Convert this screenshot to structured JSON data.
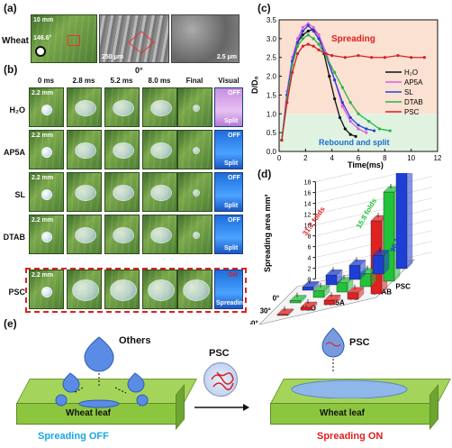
{
  "panels": {
    "a": "(a)",
    "b": "(b)",
    "c": "(c)",
    "d": "(d)",
    "e": "(e)"
  },
  "panel_a": {
    "wheat_label": "Wheat",
    "scale1": "10 mm",
    "angle": "146.6°",
    "scale2": "250 μm",
    "scale3": "2.5 μm"
  },
  "panel_b": {
    "angle": "0°",
    "columns": [
      "0 ms",
      "2.8 ms",
      "5.2 ms",
      "8.0 ms",
      "Final",
      "Visual"
    ],
    "rows": [
      "H₂O",
      "AP5A",
      "SL",
      "DTAB",
      "PSC"
    ],
    "scale": "2.2 mm",
    "visual_off": "OFF",
    "visual_on": "ON",
    "split": "Split",
    "spreading": "Spreading"
  },
  "chart_data": [
    {
      "type": "line",
      "ylabel": "D/D₀",
      "xlabel": "Time(ms)",
      "xlim": [
        0,
        12
      ],
      "ylim": [
        0.0,
        3.5
      ],
      "xticks": [
        0,
        2,
        4,
        6,
        8,
        10,
        12
      ],
      "yticks": [
        0.0,
        0.5,
        1.0,
        1.5,
        2.0,
        2.5,
        3.0,
        3.5
      ],
      "annotations": [
        "Spreading",
        "Rebound and split"
      ],
      "colors": {
        "H2O": "#111111",
        "AP5A": "#e05ce0",
        "SL": "#2a3fd6",
        "DTAB": "#29b34a",
        "PSC": "#d62222"
      },
      "series": [
        {
          "name": "H₂O",
          "x": [
            0.2,
            0.6,
            1,
            1.4,
            1.8,
            2.2,
            2.6,
            3,
            3.4,
            3.8,
            4.2,
            4.6,
            5.0,
            5.4,
            5.8
          ],
          "y": [
            0.3,
            1.5,
            2.4,
            2.9,
            3.1,
            3.2,
            3.25,
            3.1,
            2.6,
            2.0,
            1.4,
            0.9,
            0.6,
            0.45,
            0.4
          ]
        },
        {
          "name": "AP5A",
          "x": [
            0.2,
            0.6,
            1,
            1.4,
            1.8,
            2.2,
            2.6,
            3,
            3.6,
            4.2,
            4.8,
            5.4,
            6.0,
            6.6
          ],
          "y": [
            0.3,
            1.6,
            2.5,
            3.0,
            3.3,
            3.4,
            3.3,
            3.1,
            2.6,
            1.9,
            1.2,
            0.8,
            0.6,
            0.5
          ]
        },
        {
          "name": "SL",
          "x": [
            0.2,
            0.6,
            1,
            1.4,
            1.8,
            2.2,
            2.6,
            3,
            3.6,
            4.2,
            4.8,
            5.4,
            6.0,
            6.6,
            7.2
          ],
          "y": [
            0.3,
            1.5,
            2.4,
            2.9,
            3.2,
            3.35,
            3.2,
            3.0,
            2.5,
            1.9,
            1.3,
            0.9,
            0.7,
            0.6,
            0.55
          ]
        },
        {
          "name": "DTAB",
          "x": [
            0.2,
            0.6,
            1,
            1.4,
            1.8,
            2.2,
            2.6,
            3,
            3.6,
            4.2,
            4.8,
            5.4,
            6.0,
            6.8,
            7.6,
            8.4
          ],
          "y": [
            0.3,
            1.4,
            2.3,
            2.8,
            3.0,
            3.1,
            3.0,
            2.85,
            2.5,
            2.1,
            1.7,
            1.3,
            1.0,
            0.8,
            0.6,
            0.55
          ]
        },
        {
          "name": "PSC",
          "x": [
            0.2,
            0.6,
            1,
            1.4,
            1.8,
            2.2,
            2.6,
            3,
            3.5,
            4,
            5,
            6,
            7,
            8,
            9,
            10,
            11
          ],
          "y": [
            0.3,
            1.3,
            2.1,
            2.6,
            2.8,
            2.85,
            2.8,
            2.7,
            2.6,
            2.55,
            2.5,
            2.55,
            2.5,
            2.5,
            2.55,
            2.5,
            2.5
          ]
        }
      ]
    },
    {
      "type": "bar",
      "zlabel": "Spreading area mm²",
      "zticks": [
        0,
        2,
        4,
        6,
        8,
        10,
        12,
        14,
        16,
        18
      ],
      "angles": [
        "0°",
        "30°",
        "60°"
      ],
      "solutions": [
        "H₂O",
        "AP5A",
        "SL",
        "DTAB",
        "PSC"
      ],
      "fold_labels": [
        "31.2 folds",
        "15.8 folds",
        "96.1 folds"
      ],
      "series": [
        {
          "name": "H₂O",
          "values": [
            0.6,
            0.4,
            0.2
          ]
        },
        {
          "name": "AP5A",
          "values": [
            1.8,
            1.2,
            0.5
          ]
        },
        {
          "name": "SL",
          "values": [
            2.6,
            1.7,
            0.8
          ]
        },
        {
          "name": "DTAB",
          "values": [
            3.4,
            2.4,
            1.2
          ]
        },
        {
          "name": "PSC",
          "values": [
            18.0,
            16.5,
            13.5
          ]
        }
      ],
      "colors": {
        "0°": "#1d3fd6",
        "30°": "#22c23a",
        "60°": "#e02121"
      }
    }
  ],
  "panel_e": {
    "others": "Others",
    "psc_center": "PSC",
    "psc_right": "PSC",
    "leaf_left": "Wheat leaf",
    "leaf_right": "Wheat leaf",
    "off_caption": "Spreading OFF",
    "on_caption": "Spreading ON",
    "off_color": "#1aa6e6",
    "on_color": "#e02020"
  }
}
